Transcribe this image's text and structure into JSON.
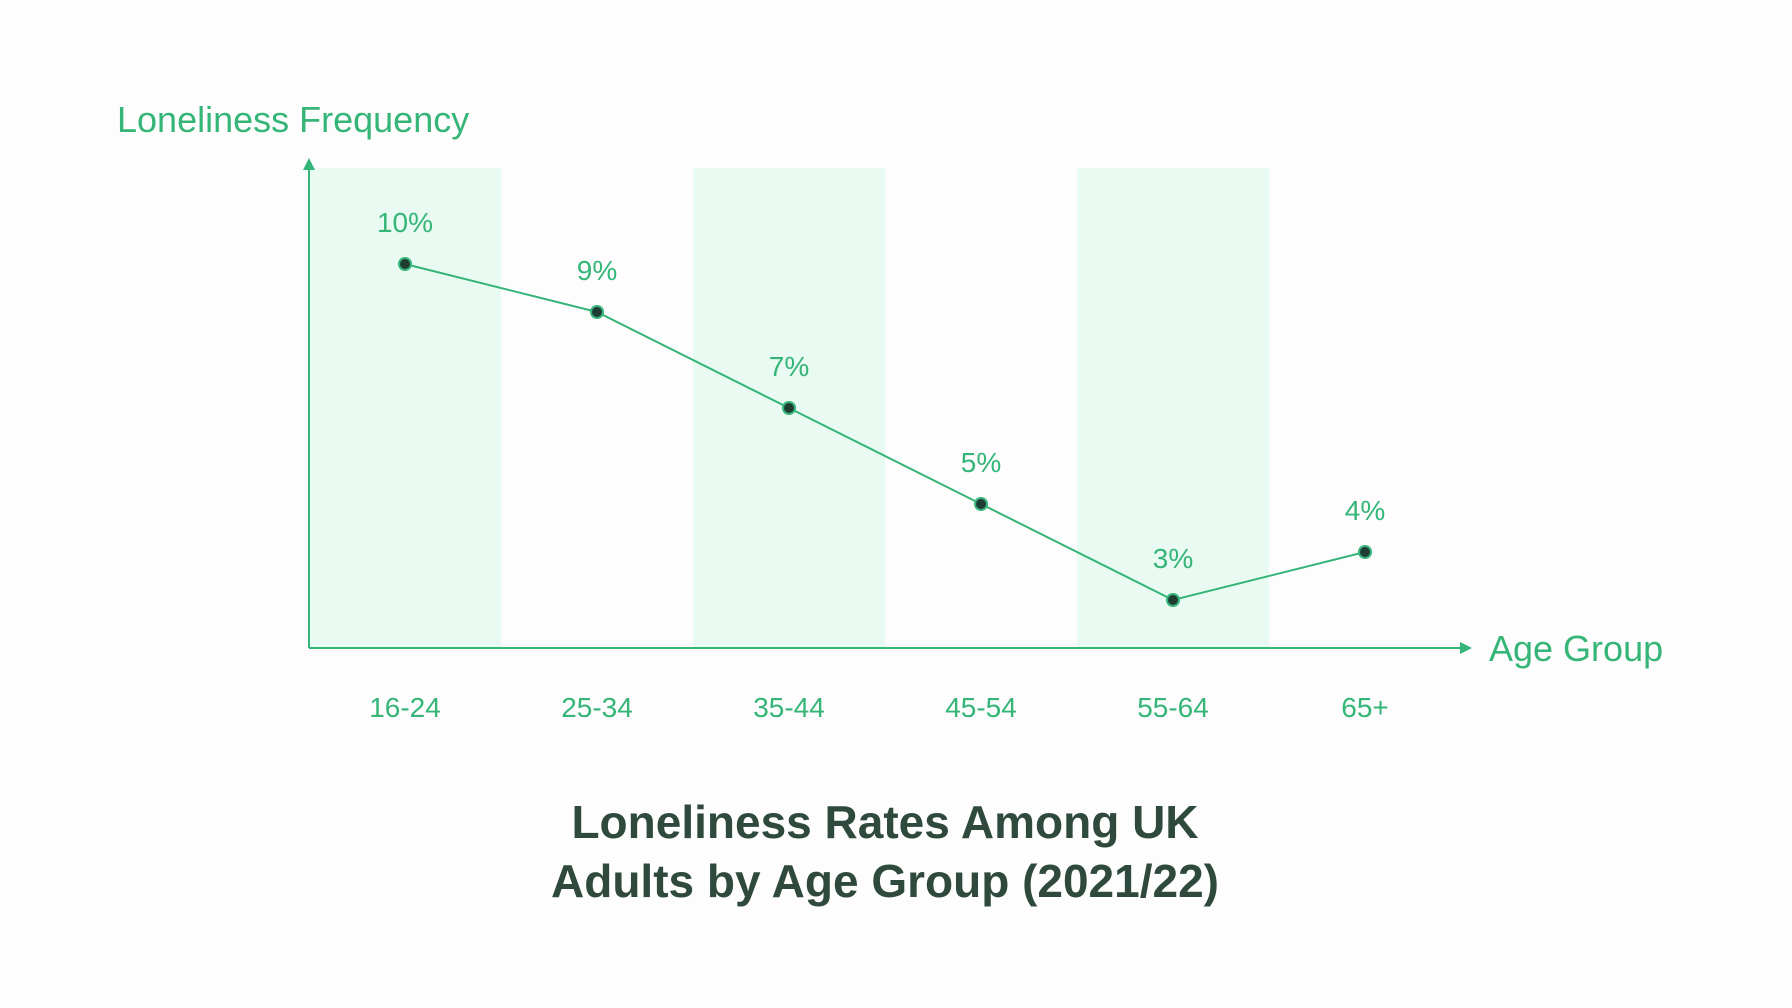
{
  "chart_data": {
    "type": "line",
    "title_lines": [
      "Loneliness Rates Among UK",
      "Adults by Age Group (2021/22)"
    ],
    "xlabel": "Age Group",
    "ylabel": "Loneliness Frequency",
    "categories": [
      "16-24",
      "25-34",
      "35-44",
      "45-54",
      "55-64",
      "65+"
    ],
    "values": [
      10,
      9,
      7,
      5,
      3,
      4
    ],
    "data_labels": [
      "10%",
      "9%",
      "7%",
      "5%",
      "3%",
      "4%"
    ],
    "y_unit": "%",
    "grid": false,
    "alternating_bands": true,
    "colors": {
      "accent": "#35b577",
      "band": "#e8faf1",
      "marker": "#1f3d33",
      "title": "#2f4a3d"
    }
  }
}
